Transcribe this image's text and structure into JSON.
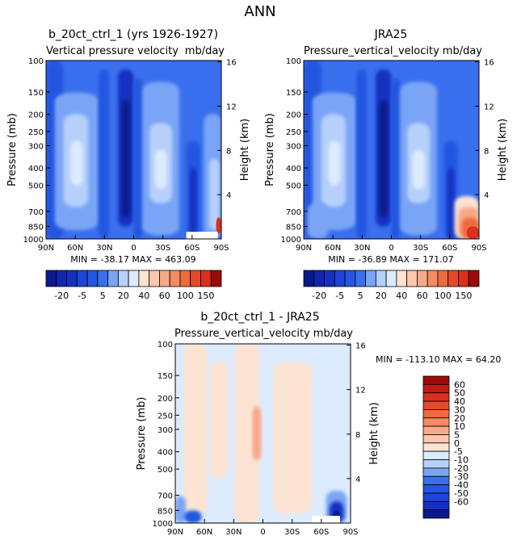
{
  "figure_title": "ANN",
  "colors": {
    "navy": "#0a1a8c",
    "dark": "#1530c0",
    "mid": "#2456e0",
    "base": "#3a6fee",
    "light": "#7aa4f6",
    "pale": "#b6d0fb",
    "palest": "#dcebfd",
    "peach": "#fde3d2",
    "salmon": "#f7a98a",
    "orange": "#ef6a3c",
    "red": "#d8301c",
    "darkred": "#9b0b0b"
  },
  "chart_data": [
    {
      "type": "heatmap",
      "title": "b_20ct_ctrl_1 (yrs 1926-1927)",
      "subtitle_left": "Vertical pressure velocity",
      "subtitle_right": "mb/day",
      "xlabel": "",
      "ylabel": "Pressure (mb)",
      "ylabel_right": "Height (km)",
      "x_ticks": [
        "90N",
        "60N",
        "30N",
        "0",
        "30S",
        "60S",
        "90S"
      ],
      "x_range": [
        90,
        -90
      ],
      "y_ticks": [
        100,
        150,
        200,
        250,
        300,
        400,
        500,
        700,
        850,
        1000
      ],
      "y_range": [
        100,
        1000
      ],
      "y_scale": "log",
      "y_right_ticks": [
        4,
        8,
        12,
        16
      ],
      "stats": "MIN = -38.17   MAX = 463.09",
      "colorbar": {
        "orientation": "horizontal",
        "tick_labels": [
          "-20",
          "-5",
          "5",
          "20",
          "40",
          "60",
          "100",
          "150"
        ]
      }
    },
    {
      "type": "heatmap",
      "title": "JRA25",
      "subtitle_left": "Pressure_vertical_velocity",
      "subtitle_right": "mb/day",
      "xlabel": "",
      "ylabel": "Pressure (mb)",
      "ylabel_right": "Height (km)",
      "x_ticks": [
        "90N",
        "60N",
        "30N",
        "0",
        "30S",
        "60S",
        "90S"
      ],
      "x_range": [
        90,
        -90
      ],
      "y_ticks": [
        100,
        150,
        200,
        250,
        300,
        400,
        500,
        700,
        850,
        1000
      ],
      "y_range": [
        100,
        1000
      ],
      "y_scale": "log",
      "y_right_ticks": [
        4,
        8,
        12,
        16
      ],
      "stats": "MIN = -36.89   MAX = 171.07",
      "colorbar": {
        "orientation": "horizontal",
        "tick_labels": [
          "-20",
          "-5",
          "5",
          "20",
          "40",
          "60",
          "100",
          "150"
        ]
      }
    },
    {
      "type": "heatmap",
      "title": "b_20ct_ctrl_1 - JRA25",
      "subtitle_left": "Pressure_vertical_velocity",
      "subtitle_right": "mb/day",
      "xlabel": "",
      "ylabel": "Pressure (mb)",
      "ylabel_right": "Height (km)",
      "x_ticks": [
        "90N",
        "60N",
        "30N",
        "0",
        "30S",
        "60S",
        "90S"
      ],
      "x_range": [
        90,
        -90
      ],
      "y_ticks": [
        100,
        150,
        200,
        250,
        300,
        400,
        500,
        700,
        850,
        1000
      ],
      "y_range": [
        100,
        1000
      ],
      "y_scale": "log",
      "y_right_ticks": [
        4,
        8,
        12,
        16
      ],
      "stats": "MIN = -113.10   MAX =  64.20",
      "colorbar": {
        "orientation": "vertical",
        "tick_labels": [
          "60",
          "50",
          "40",
          "30",
          "20",
          "10",
          "5",
          "0",
          "-5",
          "-10",
          "-20",
          "-30",
          "-40",
          "-50",
          "-60"
        ]
      }
    }
  ]
}
